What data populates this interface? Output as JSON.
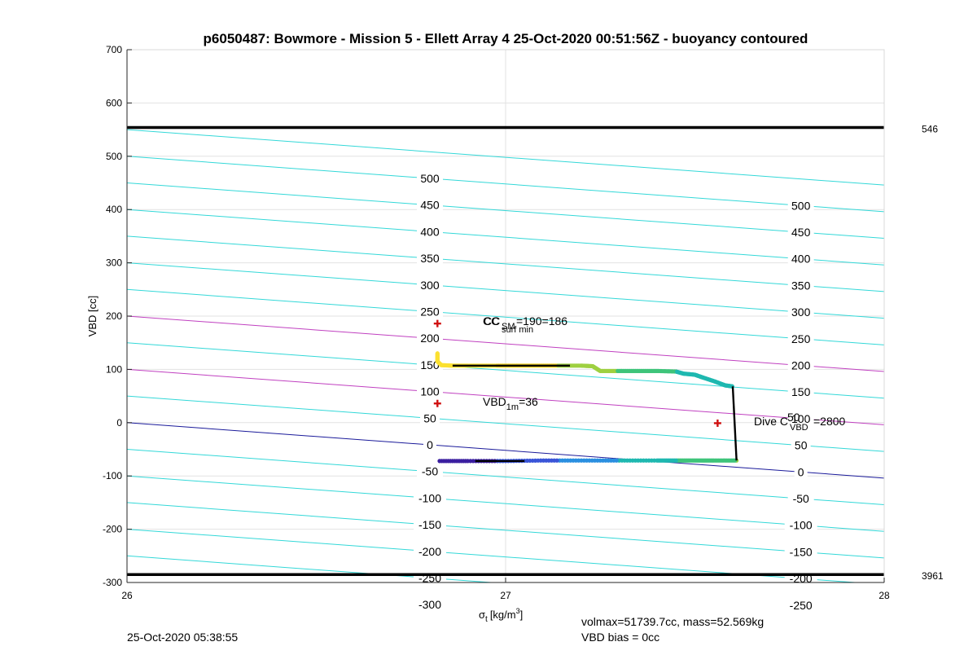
{
  "chart_data": {
    "type": "scatter",
    "title": "p6050487: Bowmore - Mission 5 - Ellett Array 4 25-Oct-2020 00:51:56Z - buoyancy contoured",
    "xlabel_main": "σ",
    "xlabel_sub": "t",
    "xlabel_unit": "[kg/m",
    "xlabel_sup": "3",
    "xlabel_close": "]",
    "ylabel": "VBD [cc]",
    "xlim": [
      26,
      28
    ],
    "ylim": [
      -300,
      700
    ],
    "xticks": [
      "26",
      "27",
      "28"
    ],
    "yticks": [
      "700",
      "600",
      "500",
      "400",
      "300",
      "200",
      "100",
      "0",
      "-100",
      "-200",
      "-300"
    ],
    "xtick_values": [
      26,
      27,
      28
    ],
    "ytick_values": [
      700,
      600,
      500,
      400,
      300,
      200,
      100,
      0,
      -100,
      -200,
      -300
    ],
    "grid": true,
    "limit_lines": [
      {
        "y": 554,
        "label": "546"
      },
      {
        "y": -285,
        "label": "3961"
      }
    ],
    "contours": {
      "slope_cc_per_sigma": -52,
      "values": [
        -300,
        -250,
        -200,
        -150,
        -100,
        -50,
        0,
        50,
        100,
        150,
        200,
        250,
        300,
        350,
        400,
        450,
        500,
        550
      ],
      "highlight_magenta": [
        100,
        200
      ],
      "highlight_blue": [
        0
      ],
      "left_labels": [
        {
          "text": "500",
          "value": 500
        },
        {
          "text": "450",
          "value": 450
        },
        {
          "text": "400",
          "value": 400
        },
        {
          "text": "350",
          "value": 350
        },
        {
          "text": "300",
          "value": 300
        },
        {
          "text": "250",
          "value": 250
        },
        {
          "text": "200",
          "value": 200
        },
        {
          "text": "150",
          "value": 150
        },
        {
          "text": "100",
          "value": 100
        },
        {
          "text": "50",
          "value": 50
        },
        {
          "text": "0",
          "value": 0
        },
        {
          "text": "-50",
          "value": -50
        },
        {
          "text": "-100",
          "value": -100
        },
        {
          "text": "-150",
          "value": -150
        },
        {
          "text": "-200",
          "value": -200
        },
        {
          "text": "-250",
          "value": -250
        },
        {
          "text": "-300",
          "value": -300
        }
      ],
      "right_labels": [
        {
          "text": "500",
          "value": 500
        },
        {
          "text": "450",
          "value": 450
        },
        {
          "text": "400",
          "value": 400
        },
        {
          "text": "350",
          "value": 350
        },
        {
          "text": "300",
          "value": 300
        },
        {
          "text": "250",
          "value": 250
        },
        {
          "text": "200",
          "value": 200
        },
        {
          "text": "150",
          "value": 150
        },
        {
          "text": "100",
          "value": 100
        },
        {
          "text": "50",
          "value": 50
        },
        {
          "text": "0",
          "value": 0
        },
        {
          "text": "-50",
          "value": -50
        },
        {
          "text": "-100",
          "value": -100
        },
        {
          "text": "-150",
          "value": -150
        },
        {
          "text": "-200",
          "value": -200
        },
        {
          "text": "-250",
          "value": -250
        }
      ]
    },
    "series": [
      {
        "x": [
          26.82,
          26.82,
          26.83,
          26.86,
          26.9,
          26.95,
          27.0,
          27.05,
          27.1,
          27.15,
          27.2,
          27.23,
          27.25,
          27.3,
          27.35,
          27.4,
          27.45,
          27.47,
          27.5,
          27.52,
          27.55,
          27.58,
          27.6
        ],
        "y": [
          130,
          115,
          108,
          107,
          107,
          107,
          107,
          107,
          107,
          107,
          107,
          106,
          97,
          97,
          97,
          97,
          96,
          92,
          90,
          85,
          78,
          70,
          68
        ]
      },
      {
        "x": [
          27.61,
          27.55,
          27.5,
          27.45,
          27.4,
          27.3,
          27.2,
          27.1,
          27.0,
          26.9,
          26.82
        ],
        "y": [
          -71,
          -71,
          -71,
          -71,
          -71,
          -71,
          -71,
          -71,
          -72,
          -72,
          -72
        ]
      }
    ],
    "black_segments": [
      {
        "x": [
          26.86,
          27.17
        ],
        "y": [
          107,
          107
        ]
      },
      {
        "x": [
          27.6,
          27.61
        ],
        "y": [
          68,
          -71
        ]
      },
      {
        "x": [
          26.92,
          27.05
        ],
        "y": [
          -72,
          -72
        ]
      }
    ],
    "markers": [
      {
        "x": 26.82,
        "y": 186
      },
      {
        "x": 26.82,
        "y": 36
      },
      {
        "x": 27.56,
        "y": -1
      }
    ],
    "annotations": {
      "cc_overlap_a": "CC",
      "cc_sub_a": "SM",
      "cc_overlap_b": "CC",
      "cc_sub_b": "surf min",
      "cc_value": "=190=186",
      "vbd_main": "VBD",
      "vbd_sub": "1m",
      "vbd_value": "=36",
      "dive_main": "Dive C",
      "dive_sup": "50",
      "dive_sub": "VBD",
      "dive_value": "=2800"
    },
    "footer": {
      "date": "25-Oct-2020 05:38:55",
      "volmax": "volmax=51739.7cc, mass=52.569kg",
      "bias": "VBD bias = 0cc"
    },
    "colors": {
      "contour": "#33d8d8",
      "magenta": "#c040c0",
      "zero_contour": "#1a1a9a",
      "grid": "#e2e2e2",
      "marker": "#d01010",
      "colormap": [
        "#3b1fa0",
        "#3a55d8",
        "#2a8fe0",
        "#1fb8b0",
        "#3ec47a",
        "#9ed040",
        "#f0d020",
        "#fbe030"
      ]
    }
  }
}
